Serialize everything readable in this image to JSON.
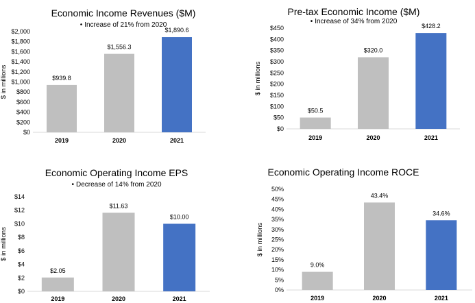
{
  "chart_data": [
    {
      "type": "bar",
      "title": "Economic Income Revenues ($M)",
      "subtitle": "Increase of 21% from 2020",
      "ylabel": "$ in millions",
      "categories": [
        "2019",
        "2020",
        "2021"
      ],
      "values": [
        939.8,
        1556.3,
        1890.6
      ],
      "data_labels": [
        "$939.8",
        "$1,556.3",
        "$1,890.6"
      ],
      "yticks": [
        0,
        200,
        400,
        600,
        800,
        1000,
        1200,
        1400,
        1600,
        1800,
        2000
      ],
      "ytick_labels": [
        "$0",
        "$200",
        "$400",
        "$600",
        "$800",
        "$1,000",
        "$1,200",
        "$1,400",
        "$1,600",
        "$1,800",
        "$2,000"
      ],
      "ylim": [
        0,
        2000
      ],
      "colors": [
        "#bfbfbf",
        "#bfbfbf",
        "#4472c4"
      ]
    },
    {
      "type": "bar",
      "title": "Pre-tax Economic Income ($M)",
      "subtitle": "Increase of 34% from 2020",
      "ylabel": "$ in millions",
      "categories": [
        "2019",
        "2020",
        "2021"
      ],
      "values": [
        50.5,
        320.0,
        428.2
      ],
      "data_labels": [
        "$50.5",
        "$320.0",
        "$428.2"
      ],
      "yticks": [
        0,
        50,
        100,
        150,
        200,
        250,
        300,
        350,
        400,
        450
      ],
      "ytick_labels": [
        "$0",
        "$50",
        "$100",
        "$150",
        "$200",
        "$250",
        "$300",
        "$350",
        "$400",
        "$450"
      ],
      "ylim": [
        0,
        450
      ],
      "colors": [
        "#bfbfbf",
        "#bfbfbf",
        "#4472c4"
      ]
    },
    {
      "type": "bar",
      "title": "Economic Operating Income EPS",
      "subtitle": "Decrease of 14% from 2020",
      "ylabel": "$ in millions",
      "categories": [
        "2019",
        "2020",
        "2021"
      ],
      "values": [
        2.05,
        11.63,
        10.0
      ],
      "data_labels": [
        "$2.05",
        "$11.63",
        "$10.00"
      ],
      "yticks": [
        0,
        2,
        4,
        6,
        8,
        10,
        12,
        14
      ],
      "ytick_labels": [
        "$0",
        "$2",
        "$4",
        "$6",
        "$8",
        "$10",
        "$12",
        "$14"
      ],
      "ylim": [
        0,
        14
      ],
      "colors": [
        "#bfbfbf",
        "#bfbfbf",
        "#4472c4"
      ]
    },
    {
      "type": "bar",
      "title": "Economic Operating Income ROCE",
      "subtitle": "",
      "ylabel": "$ in millions",
      "categories": [
        "2019",
        "2020",
        "2021"
      ],
      "values": [
        9.0,
        43.4,
        34.6
      ],
      "data_labels": [
        "9.0%",
        "43.4%",
        "34.6%"
      ],
      "yticks": [
        0,
        5,
        10,
        15,
        20,
        25,
        30,
        35,
        40,
        45,
        50
      ],
      "ytick_labels": [
        "0%",
        "5%",
        "10%",
        "15%",
        "20%",
        "25%",
        "30%",
        "35%",
        "40%",
        "45%",
        "50%"
      ],
      "ylim": [
        0,
        50
      ],
      "colors": [
        "#bfbfbf",
        "#bfbfbf",
        "#4472c4"
      ]
    }
  ]
}
